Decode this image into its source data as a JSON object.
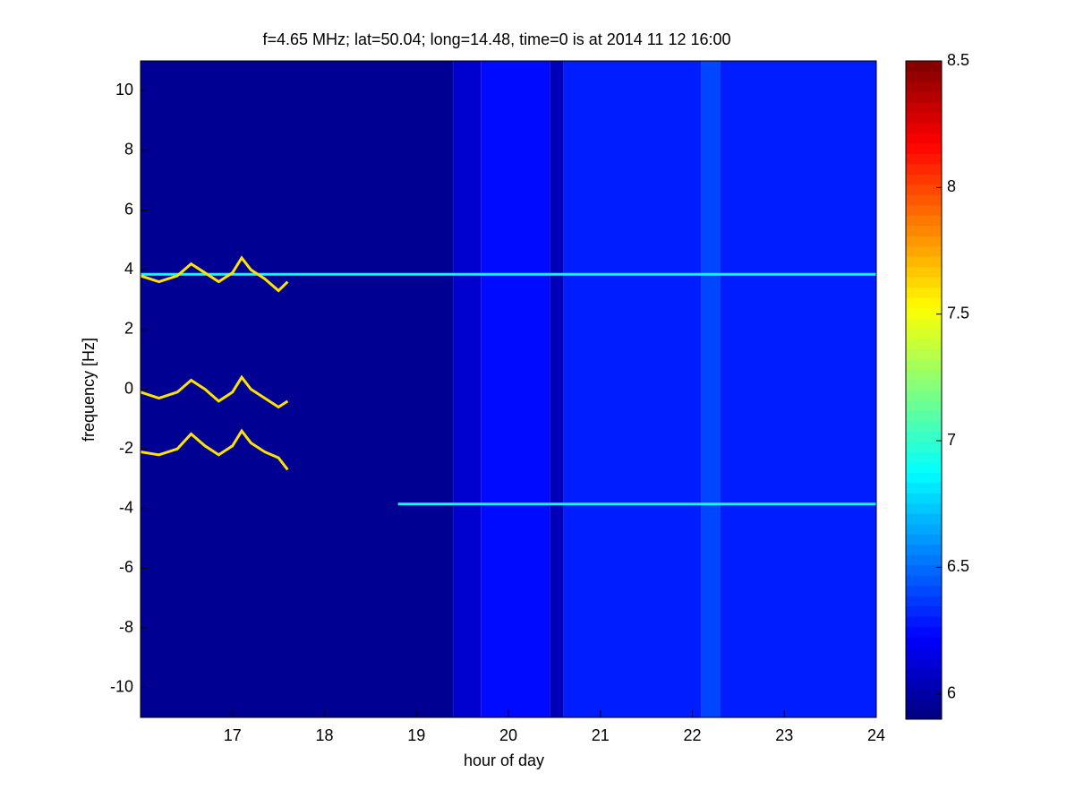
{
  "chart_data": {
    "type": "heatmap",
    "title": "f=4.65 MHz;  lat=50.04; long=14.48, time=0 is at 2014 11 12 16:00",
    "xlabel": "hour of day",
    "ylabel": "frequency [Hz]",
    "xlim": [
      16,
      24
    ],
    "xticks": [
      17,
      18,
      19,
      20,
      21,
      22,
      23,
      24
    ],
    "ylim": [
      -11,
      11
    ],
    "yticks": [
      -10,
      -8,
      -6,
      -4,
      -2,
      0,
      2,
      4,
      6,
      8,
      10
    ],
    "clim": [
      5.9,
      8.5
    ],
    "cticks": [
      6,
      6.5,
      7,
      7.5,
      8,
      8.5
    ],
    "colormap": "jet",
    "bands": {
      "x": [
        16,
        19.4,
        19.7,
        20.45,
        20.6,
        22.1,
        22.3,
        24
      ],
      "values": [
        5.95,
        6.1,
        6.25,
        6.05,
        6.3,
        6.4,
        6.3
      ]
    },
    "series": [
      {
        "level": 6.9,
        "x": [
          16,
          24
        ],
        "values": [
          3.85,
          3.85
        ]
      },
      {
        "level": 6.9,
        "x": [
          18.8,
          24
        ],
        "values": [
          -3.85,
          -3.85
        ]
      },
      {
        "level": 7.6,
        "x": [
          16,
          16.2,
          16.4,
          16.55,
          16.7,
          16.85,
          17.0,
          17.1,
          17.2,
          17.35,
          17.5,
          17.6
        ],
        "values": [
          3.8,
          3.6,
          3.8,
          4.2,
          3.9,
          3.6,
          3.9,
          4.4,
          4.0,
          3.7,
          3.3,
          3.6
        ]
      },
      {
        "level": 7.6,
        "x": [
          16,
          16.2,
          16.4,
          16.55,
          16.7,
          16.85,
          17.0,
          17.1,
          17.2,
          17.35,
          17.5,
          17.6
        ],
        "values": [
          -0.1,
          -0.3,
          -0.1,
          0.3,
          0.0,
          -0.4,
          -0.1,
          0.4,
          0.0,
          -0.3,
          -0.6,
          -0.4
        ]
      },
      {
        "level": 7.6,
        "x": [
          16,
          16.2,
          16.4,
          16.55,
          16.7,
          16.85,
          17.0,
          17.1,
          17.2,
          17.35,
          17.5,
          17.6
        ],
        "values": [
          -2.1,
          -2.2,
          -2.0,
          -1.5,
          -1.9,
          -2.2,
          -1.9,
          -1.4,
          -1.8,
          -2.1,
          -2.3,
          -2.7
        ]
      }
    ]
  }
}
